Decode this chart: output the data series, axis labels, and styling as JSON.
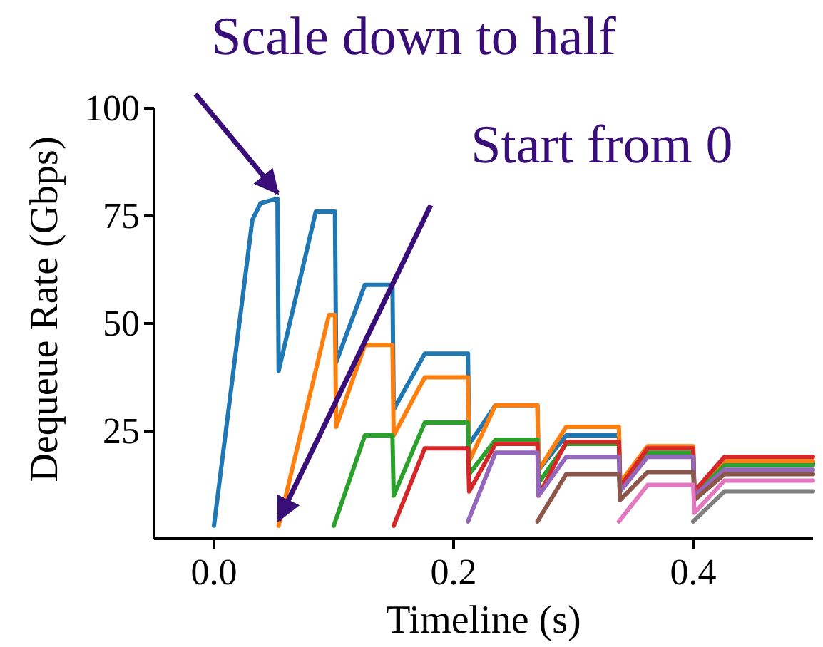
{
  "chart_data": {
    "type": "line",
    "xlabel": "Timeline (s)",
    "ylabel": "Dequeue Rate (Gbps)",
    "xlim": [
      -0.05,
      0.5
    ],
    "ylim": [
      0,
      100
    ],
    "xticks": [
      {
        "value": 0,
        "label": "0.0"
      },
      {
        "value": 0.2,
        "label": "0.2"
      },
      {
        "value": 0.4,
        "label": "0.4"
      }
    ],
    "yticks": [
      25,
      50,
      75,
      100
    ],
    "grid": false,
    "marker": "none",
    "line_style": "solid",
    "annotations": [
      {
        "text": "Scale down to half",
        "x": 0.053,
        "y": 79
      },
      {
        "text": "Start from 0",
        "x": 0.054,
        "y": 3
      }
    ],
    "series": [
      {
        "color": "#1f77b4",
        "x": [
          0,
          0.032,
          0.039,
          0.053,
          0.054,
          0.085,
          0.101,
          0.102,
          0.126,
          0.149,
          0.15,
          0.176,
          0.212,
          0.213,
          0.235,
          0.27,
          0.271,
          0.294,
          0.338,
          0.339,
          0.362,
          0.4,
          0.401,
          0.426,
          0.5
        ],
        "values": [
          3,
          74,
          78,
          79,
          39,
          76,
          76,
          41,
          59,
          59,
          30,
          43,
          43,
          22,
          31,
          31,
          16,
          24,
          24,
          13,
          19.5,
          19.5,
          11,
          17.5,
          17.5
        ]
      },
      {
        "color": "#ff7f0e",
        "x": [
          0.054,
          0.096,
          0.101,
          0.102,
          0.126,
          0.149,
          0.15,
          0.176,
          0.212,
          0.213,
          0.235,
          0.27,
          0.271,
          0.294,
          0.338,
          0.339,
          0.362,
          0.4,
          0.401,
          0.426,
          0.5
        ],
        "values": [
          3,
          52,
          52,
          26,
          45,
          45,
          24,
          37.5,
          37.5,
          18,
          31,
          31,
          16,
          26,
          26,
          13,
          21.5,
          21.5,
          11,
          18,
          18
        ]
      },
      {
        "color": "#2ca02c",
        "x": [
          0.1,
          0.126,
          0.149,
          0.15,
          0.176,
          0.212,
          0.213,
          0.235,
          0.27,
          0.271,
          0.294,
          0.338,
          0.339,
          0.362,
          0.4,
          0.401,
          0.426,
          0.5
        ],
        "values": [
          3,
          24,
          24,
          10,
          27,
          27,
          15,
          23,
          23,
          13,
          22,
          22,
          12,
          20,
          20,
          10,
          17,
          17
        ]
      },
      {
        "color": "#d62728",
        "x": [
          0.15,
          0.176,
          0.212,
          0.213,
          0.235,
          0.27,
          0.271,
          0.294,
          0.338,
          0.339,
          0.362,
          0.4,
          0.401,
          0.426,
          0.5
        ],
        "values": [
          3,
          21,
          21,
          11,
          22,
          22,
          10,
          22.5,
          22.5,
          12,
          21,
          21,
          11,
          19,
          19
        ]
      },
      {
        "color": "#9467bd",
        "x": [
          0.212,
          0.235,
          0.27,
          0.271,
          0.294,
          0.338,
          0.339,
          0.362,
          0.4,
          0.401,
          0.426,
          0.5
        ],
        "values": [
          4,
          20,
          20,
          10,
          19,
          19,
          11,
          19,
          19,
          10,
          16,
          16
        ]
      },
      {
        "color": "#8c564b",
        "x": [
          0.27,
          0.294,
          0.338,
          0.339,
          0.362,
          0.4,
          0.401,
          0.426,
          0.5
        ],
        "values": [
          4,
          15,
          15,
          9,
          15.5,
          15.5,
          9,
          15,
          15
        ]
      },
      {
        "color": "#e377c2",
        "x": [
          0.338,
          0.362,
          0.4,
          0.401,
          0.426,
          0.5
        ],
        "values": [
          4,
          12.5,
          12.5,
          6,
          13.5,
          13.5
        ]
      },
      {
        "color": "#7f7f7f",
        "x": [
          0.4,
          0.426,
          0.5
        ],
        "values": [
          4,
          11,
          11
        ]
      }
    ]
  }
}
